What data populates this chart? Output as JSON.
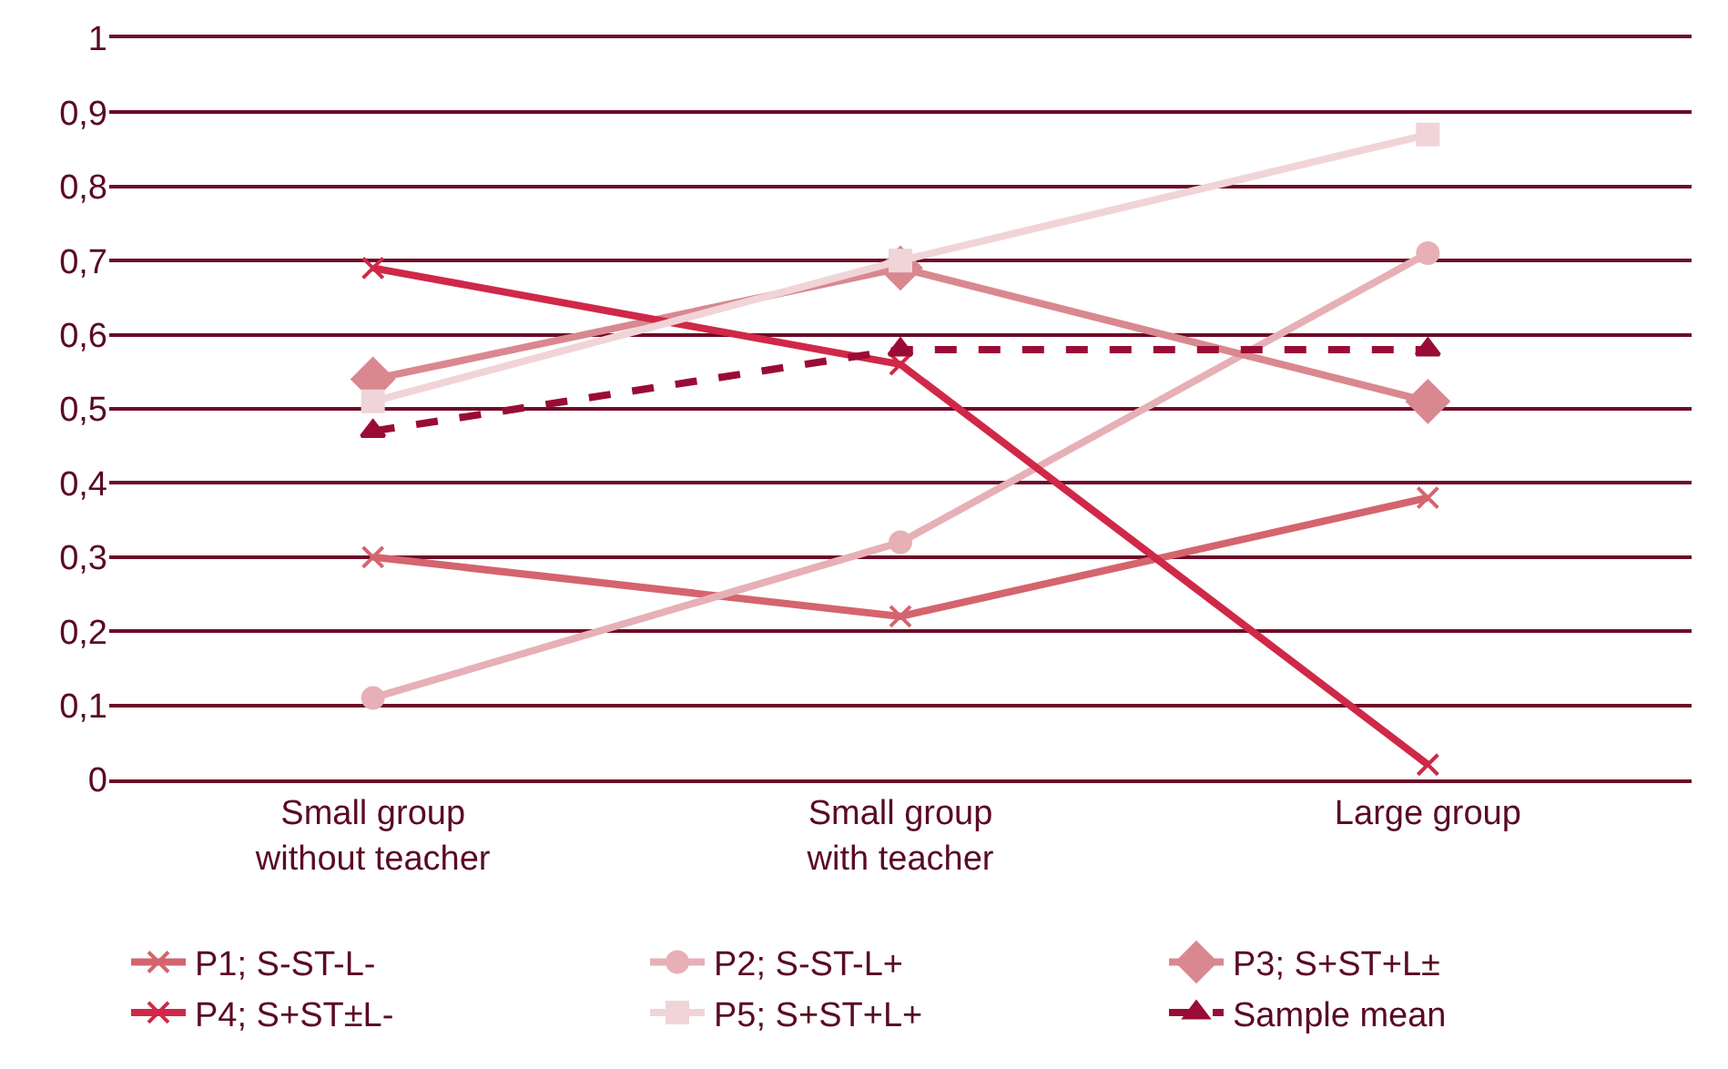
{
  "chart_data": {
    "type": "line",
    "categories": [
      "Small group\nwithout teacher",
      "Small group\nwith teacher",
      "Large group"
    ],
    "series": [
      {
        "name": "P1; S-ST-L-",
        "color": "#d4646e",
        "marker": "cross",
        "line_style": "solid",
        "values": [
          0.3,
          0.22,
          0.38
        ]
      },
      {
        "name": "P2; S-ST-L+",
        "color": "#e6b0b6",
        "marker": "circle",
        "line_style": "solid",
        "values": [
          0.11,
          0.32,
          0.71
        ]
      },
      {
        "name": "P3; S+ST+L±",
        "color": "#d98890",
        "marker": "diamond",
        "line_style": "solid",
        "values": [
          0.54,
          0.69,
          0.51
        ]
      },
      {
        "name": "P4; S+ST±L-",
        "color": "#d02848",
        "marker": "cross",
        "line_style": "solid",
        "values": [
          0.69,
          0.56,
          0.02
        ]
      },
      {
        "name": "P5; S+ST+L+",
        "color": "#f0d4d8",
        "marker": "square",
        "line_style": "solid",
        "values": [
          0.51,
          0.7,
          0.87
        ]
      },
      {
        "name": "Sample mean",
        "color": "#9a0c36",
        "marker": "triangle",
        "line_style": "dashed",
        "values": [
          0.47,
          0.58,
          0.58
        ]
      }
    ],
    "ylim": [
      0,
      1
    ],
    "yticks": [
      0,
      {
        "value": 0.1,
        "label": "0,1"
      },
      {
        "value": 0.2,
        "label": "0,2"
      },
      {
        "value": 0.3,
        "label": "0,3"
      },
      {
        "value": 0.4,
        "label": "0,4"
      },
      {
        "value": 0.5,
        "label": "0,5"
      },
      {
        "value": 0.6,
        "label": "0,6"
      },
      {
        "value": 0.7,
        "label": "0,7"
      },
      {
        "value": 0.8,
        "label": "0,8"
      },
      {
        "value": 0.9,
        "label": "0,9"
      },
      1
    ],
    "grid": "y",
    "legend": "bottom"
  }
}
